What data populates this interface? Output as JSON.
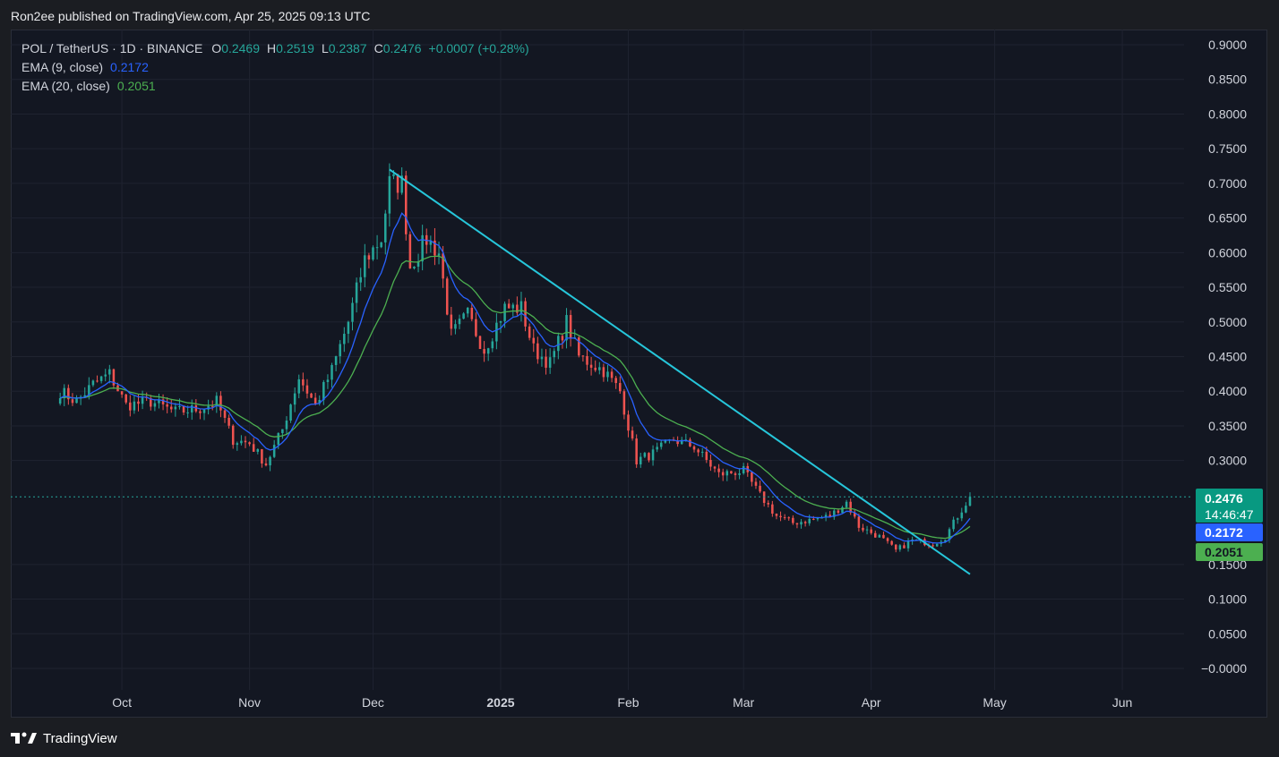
{
  "header": {
    "publish_text": "Ron2ee published on TradingView.com, Apr 25, 2025 09:13 UTC"
  },
  "legend": {
    "symbol": "POL / TetherUS · 1D · BINANCE",
    "o_label": "O",
    "o_value": "0.2469",
    "h_label": "H",
    "h_value": "0.2519",
    "l_label": "L",
    "l_value": "0.2387",
    "c_label": "C",
    "c_value": "0.2476",
    "change": "+0.0007 (+0.28%)",
    "ema9_label": "EMA (9, close)",
    "ema9_value": "0.2172",
    "ema20_label": "EMA (20, close)",
    "ema20_value": "0.2051"
  },
  "price_tags": {
    "last": "0.2476",
    "countdown": "14:46:47",
    "ema9": "0.2172",
    "ema20": "0.2051"
  },
  "footer": {
    "brand": "TradingView"
  },
  "colors": {
    "up": "#26a69a",
    "down": "#ef5350",
    "ema9": "#2962ff",
    "ema20": "#4caf50",
    "trendline": "#26c6da",
    "background": "#131722",
    "grid": "#1f2330"
  },
  "chart_data": {
    "type": "candlestick",
    "title": "POL / TetherUS · 1D · BINANCE",
    "ylim": [
      -0.0,
      0.9
    ],
    "y_ticks": [
      "0.9000",
      "0.8500",
      "0.8000",
      "0.7500",
      "0.7000",
      "0.6500",
      "0.6000",
      "0.5500",
      "0.5000",
      "0.4500",
      "0.4000",
      "0.3500",
      "0.3000",
      "0.1500",
      "0.1000",
      "0.0500",
      "−0.0000"
    ],
    "y_tick_values": [
      0.9,
      0.85,
      0.8,
      0.75,
      0.7,
      0.65,
      0.6,
      0.55,
      0.5,
      0.45,
      0.4,
      0.35,
      0.3,
      0.15,
      0.1,
      0.05,
      0.0
    ],
    "x_ticks": [
      "Oct",
      "Nov",
      "Dec",
      "2025",
      "Feb",
      "Mar",
      "Apr",
      "May",
      "Jun"
    ],
    "x_tick_dates": [
      "2024-10-01",
      "2024-11-01",
      "2024-12-01",
      "2025-01-01",
      "2025-02-01",
      "2025-03-01",
      "2025-04-01",
      "2025-05-01",
      "2025-06-01"
    ],
    "x_range": [
      "2024-09-04",
      "2025-06-16"
    ],
    "grid": true,
    "last_price": 0.2476,
    "close_anchors": [
      [
        "2024-09-16",
        0.4
      ],
      [
        "2024-09-20",
        0.385
      ],
      [
        "2024-09-24",
        0.41
      ],
      [
        "2024-09-28",
        0.425
      ],
      [
        "2024-10-02",
        0.38
      ],
      [
        "2024-10-08",
        0.385
      ],
      [
        "2024-10-14",
        0.37
      ],
      [
        "2024-10-20",
        0.375
      ],
      [
        "2024-10-24",
        0.385
      ],
      [
        "2024-10-28",
        0.33
      ],
      [
        "2024-11-01",
        0.325
      ],
      [
        "2024-11-05",
        0.295
      ],
      [
        "2024-11-09",
        0.345
      ],
      [
        "2024-11-13",
        0.42
      ],
      [
        "2024-11-17",
        0.38
      ],
      [
        "2024-11-21",
        0.43
      ],
      [
        "2024-11-25",
        0.5
      ],
      [
        "2024-11-29",
        0.59
      ],
      [
        "2024-12-03",
        0.62
      ],
      [
        "2024-12-05",
        0.7
      ],
      [
        "2024-12-08",
        0.7
      ],
      [
        "2024-12-10",
        0.58
      ],
      [
        "2024-12-14",
        0.62
      ],
      [
        "2024-12-17",
        0.6
      ],
      [
        "2024-12-20",
        0.48
      ],
      [
        "2024-12-24",
        0.51
      ],
      [
        "2024-12-28",
        0.46
      ],
      [
        "2025-01-02",
        0.52
      ],
      [
        "2025-01-06",
        0.52
      ],
      [
        "2025-01-09",
        0.46
      ],
      [
        "2025-01-13",
        0.44
      ],
      [
        "2025-01-17",
        0.5
      ],
      [
        "2025-01-20",
        0.45
      ],
      [
        "2025-01-26",
        0.43
      ],
      [
        "2025-01-30",
        0.4
      ],
      [
        "2025-02-03",
        0.3
      ],
      [
        "2025-02-07",
        0.31
      ],
      [
        "2025-02-12",
        0.33
      ],
      [
        "2025-02-17",
        0.32
      ],
      [
        "2025-02-23",
        0.28
      ],
      [
        "2025-03-01",
        0.285
      ],
      [
        "2025-03-05",
        0.25
      ],
      [
        "2025-03-09",
        0.22
      ],
      [
        "2025-03-13",
        0.21
      ],
      [
        "2025-03-18",
        0.215
      ],
      [
        "2025-03-22",
        0.22
      ],
      [
        "2025-03-26",
        0.24
      ],
      [
        "2025-03-29",
        0.205
      ],
      [
        "2025-04-03",
        0.19
      ],
      [
        "2025-04-07",
        0.17
      ],
      [
        "2025-04-11",
        0.185
      ],
      [
        "2025-04-16",
        0.18
      ],
      [
        "2025-04-19",
        0.19
      ],
      [
        "2025-04-22",
        0.22
      ],
      [
        "2025-04-25",
        0.2476
      ]
    ],
    "trendline": {
      "start": [
        "2024-12-05",
        0.72
      ],
      "end": [
        "2025-04-25",
        0.136
      ]
    },
    "series": [
      {
        "name": "EMA (9, close)",
        "last_value": 0.2172
      },
      {
        "name": "EMA (20, close)",
        "last_value": 0.2051
      }
    ]
  }
}
